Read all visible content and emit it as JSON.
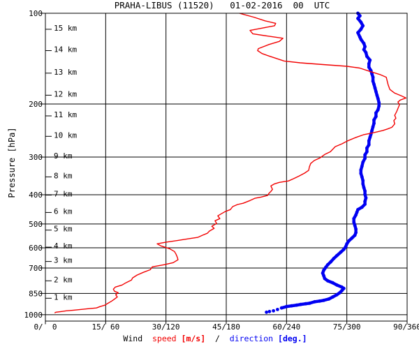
{
  "title": "PRAHA-LIBUS (11520)   01-02-2016  00  UTC",
  "station": {
    "name": "PRAHA-LIBUS",
    "id": "11520",
    "datetime": "01-02-2016 00 UTC"
  },
  "colors": {
    "speed": "#f20000",
    "direction": "#0000f2",
    "axis": "#000000",
    "background": "#ffffff"
  },
  "y_axis": {
    "label": "Pressure [hPa]",
    "ticks": [
      100,
      200,
      300,
      400,
      500,
      600,
      700,
      850,
      1000
    ],
    "scale": "log",
    "range": [
      100,
      1050
    ]
  },
  "height_axis": {
    "unit": "km",
    "ticks": [
      {
        "label": "15 km",
        "pressure": 113
      },
      {
        "label": "14 km",
        "pressure": 133
      },
      {
        "label": "13 km",
        "pressure": 158
      },
      {
        "label": "12 km",
        "pressure": 187
      },
      {
        "label": "11 km",
        "pressure": 219
      },
      {
        "label": "10 km",
        "pressure": 256
      },
      {
        "label": "9 km",
        "pressure": 300
      },
      {
        "label": "8 km",
        "pressure": 349
      },
      {
        "label": "7 km",
        "pressure": 401
      },
      {
        "label": "6 km",
        "pressure": 458
      },
      {
        "label": "5 km",
        "pressure": 524
      },
      {
        "label": "4 km",
        "pressure": 597
      },
      {
        "label": "3 km",
        "pressure": 666
      },
      {
        "label": "2 km",
        "pressure": 772
      },
      {
        "label": "1 km",
        "pressure": 882
      }
    ]
  },
  "x_axis": {
    "tick_labels": [
      "0/  0",
      "15/ 60",
      "30/120",
      "45/180",
      "60/240",
      "75/300",
      "90/360"
    ],
    "speed_ticks": [
      0,
      15,
      30,
      45,
      60,
      75,
      90
    ],
    "speed_range": [
      0,
      90
    ],
    "direction_range": [
      0,
      360
    ]
  },
  "legend": {
    "parts": [
      {
        "text": "Wind  ",
        "color": "#000000",
        "bold": false
      },
      {
        "text": "speed ",
        "color": "#f20000",
        "bold": false
      },
      {
        "text": "[m/s]",
        "color": "#f20000",
        "bold": true
      },
      {
        "text": "  /  ",
        "color": "#000000",
        "bold": false
      },
      {
        "text": "direction ",
        "color": "#0000f2",
        "bold": false
      },
      {
        "text": "[deg.]",
        "color": "#0000f2",
        "bold": true
      }
    ]
  },
  "chart_data": {
    "type": "line",
    "title": "PRAHA-LIBUS (11520) 01-02-2016 00 UTC",
    "xlabel": "Wind speed [m/s] / direction [deg.]",
    "ylabel": "Pressure [hPa]",
    "y_scale": "log",
    "ylim": [
      1050,
      100
    ],
    "grid": true,
    "series": [
      {
        "name": "wind speed",
        "unit": "m/s",
        "color": "#f20000",
        "x_range": [
          0,
          90
        ],
        "points": [
          [
            48.3,
            100
          ],
          [
            49.5,
            101
          ],
          [
            51.8,
            103
          ],
          [
            54.7,
            106
          ],
          [
            57.3,
            108
          ],
          [
            57.0,
            110
          ],
          [
            53.9,
            112
          ],
          [
            50.9,
            114
          ],
          [
            51.6,
            117
          ],
          [
            55.2,
            119
          ],
          [
            59.1,
            121
          ],
          [
            58.2,
            124
          ],
          [
            55.6,
            127
          ],
          [
            53.0,
            131
          ],
          [
            52.8,
            133
          ],
          [
            53.9,
            136
          ],
          [
            55.2,
            138
          ],
          [
            57.3,
            141
          ],
          [
            59.4,
            144
          ],
          [
            63.4,
            146
          ],
          [
            69.1,
            148
          ],
          [
            75.1,
            150
          ],
          [
            78.2,
            152
          ],
          [
            80.8,
            156
          ],
          [
            83.4,
            160
          ],
          [
            84.8,
            163
          ],
          [
            85.1,
            169
          ],
          [
            85.3,
            173
          ],
          [
            85.7,
            179
          ],
          [
            86.9,
            184
          ],
          [
            88.6,
            188
          ],
          [
            89.7,
            191
          ],
          [
            88.3,
            194
          ],
          [
            87.7,
            197
          ],
          [
            88.1,
            201
          ],
          [
            87.7,
            207
          ],
          [
            87.4,
            212
          ],
          [
            86.9,
            218
          ],
          [
            87.2,
            223
          ],
          [
            86.7,
            227
          ],
          [
            86.9,
            233
          ],
          [
            86.2,
            239
          ],
          [
            85.1,
            242
          ],
          [
            83.9,
            245
          ],
          [
            81.7,
            249
          ],
          [
            79.1,
            253
          ],
          [
            77.3,
            258
          ],
          [
            75.2,
            265
          ],
          [
            73.8,
            271
          ],
          [
            72.1,
            277
          ],
          [
            70.9,
            288
          ],
          [
            69.5,
            294
          ],
          [
            68.3,
            302
          ],
          [
            66.9,
            308
          ],
          [
            66.0,
            315
          ],
          [
            65.7,
            323
          ],
          [
            65.5,
            332
          ],
          [
            64.5,
            339
          ],
          [
            63.1,
            347
          ],
          [
            61.7,
            354
          ],
          [
            60.5,
            360
          ],
          [
            58.2,
            364
          ],
          [
            57.0,
            368
          ],
          [
            56.1,
            374
          ],
          [
            56.5,
            384
          ],
          [
            56.1,
            390
          ],
          [
            55.6,
            396
          ],
          [
            55.3,
            402
          ],
          [
            53.7,
            407
          ],
          [
            52.1,
            411
          ],
          [
            50.9,
            418
          ],
          [
            49.2,
            427
          ],
          [
            47.8,
            431
          ],
          [
            46.6,
            438
          ],
          [
            46.0,
            448
          ],
          [
            44.7,
            455
          ],
          [
            42.9,
            470
          ],
          [
            43.4,
            480
          ],
          [
            42.2,
            488
          ],
          [
            42.6,
            498
          ],
          [
            41.4,
            509
          ],
          [
            42.0,
            517
          ],
          [
            40.8,
            528
          ],
          [
            40.3,
            537
          ],
          [
            39.1,
            545
          ],
          [
            37.9,
            554
          ],
          [
            35.6,
            560
          ],
          [
            33.4,
            566
          ],
          [
            29.9,
            575
          ],
          [
            27.8,
            582
          ],
          [
            28.7,
            591
          ],
          [
            30.9,
            604
          ],
          [
            32.1,
            617
          ],
          [
            32.5,
            630
          ],
          [
            32.8,
            644
          ],
          [
            33.0,
            657
          ],
          [
            31.8,
            672
          ],
          [
            29.5,
            683
          ],
          [
            26.6,
            694
          ],
          [
            26.1,
            709
          ],
          [
            24.3,
            724
          ],
          [
            22.8,
            739
          ],
          [
            21.7,
            755
          ],
          [
            21.4,
            768
          ],
          [
            20.0,
            784
          ],
          [
            19.1,
            797
          ],
          [
            17.4,
            810
          ],
          [
            16.9,
            823
          ],
          [
            17.2,
            836
          ],
          [
            18.1,
            845
          ],
          [
            17.5,
            859
          ],
          [
            17.9,
            873
          ],
          [
            17.2,
            887
          ],
          [
            16.5,
            901
          ],
          [
            15.6,
            916
          ],
          [
            14.8,
            930
          ],
          [
            13.6,
            940
          ],
          [
            12.7,
            950
          ],
          [
            10.8,
            955
          ],
          [
            8.7,
            961
          ],
          [
            7.0,
            966
          ],
          [
            5.2,
            971
          ],
          [
            4.0,
            976
          ],
          [
            2.6,
            981
          ],
          [
            2.3,
            987
          ]
        ]
      },
      {
        "name": "wind direction",
        "unit": "deg",
        "color": "#0000f2",
        "x_range": [
          0,
          360
        ],
        "points": [
          [
            311,
            100
          ],
          [
            313,
            102
          ],
          [
            311,
            104
          ],
          [
            314,
            107
          ],
          [
            316,
            110
          ],
          [
            314,
            113
          ],
          [
            311,
            116
          ],
          [
            313,
            120
          ],
          [
            314,
            122
          ],
          [
            317,
            126
          ],
          [
            318,
            129
          ],
          [
            317,
            132
          ],
          [
            319,
            135
          ],
          [
            320,
            139
          ],
          [
            323,
            143
          ],
          [
            322,
            147
          ],
          [
            322,
            151
          ],
          [
            324,
            155
          ],
          [
            325,
            159
          ],
          [
            326,
            163
          ],
          [
            326,
            168
          ],
          [
            327,
            172
          ],
          [
            328,
            177
          ],
          [
            329,
            182
          ],
          [
            330,
            187
          ],
          [
            331,
            192
          ],
          [
            332,
            198
          ],
          [
            332,
            203
          ],
          [
            331,
            209
          ],
          [
            329,
            214
          ],
          [
            329,
            220
          ],
          [
            327,
            226
          ],
          [
            327,
            232
          ],
          [
            326,
            238
          ],
          [
            325,
            245
          ],
          [
            324,
            252
          ],
          [
            323,
            258
          ],
          [
            322,
            265
          ],
          [
            322,
            273
          ],
          [
            320,
            280
          ],
          [
            320,
            288
          ],
          [
            318,
            295
          ],
          [
            318,
            303
          ],
          [
            316,
            312
          ],
          [
            315,
            322
          ],
          [
            314,
            331
          ],
          [
            314,
            340
          ],
          [
            315,
            349
          ],
          [
            316,
            359
          ],
          [
            316,
            368
          ],
          [
            317,
            379
          ],
          [
            318,
            389
          ],
          [
            318,
            399
          ],
          [
            319,
            410
          ],
          [
            318,
            421
          ],
          [
            318,
            430
          ],
          [
            315,
            440
          ],
          [
            311,
            448
          ],
          [
            310,
            457
          ],
          [
            309,
            467
          ],
          [
            307,
            480
          ],
          [
            307,
            493
          ],
          [
            308,
            506
          ],
          [
            309,
            520
          ],
          [
            309,
            534
          ],
          [
            308,
            545
          ],
          [
            305,
            557
          ],
          [
            302,
            569
          ],
          [
            300,
            582
          ],
          [
            299,
            594
          ],
          [
            297,
            607
          ],
          [
            294,
            620
          ],
          [
            290,
            637
          ],
          [
            287,
            651
          ],
          [
            284,
            668
          ],
          [
            281,
            683
          ],
          [
            279,
            697
          ],
          [
            277,
            712
          ],
          [
            276,
            728
          ],
          [
            277,
            743
          ],
          [
            278,
            759
          ],
          [
            281,
            772
          ],
          [
            286,
            784
          ],
          [
            290,
            797
          ],
          [
            295,
            810
          ],
          [
            297,
            818
          ],
          [
            295,
            832
          ],
          [
            293,
            845
          ],
          [
            290,
            859
          ],
          [
            286,
            873
          ],
          [
            282,
            887
          ],
          [
            277,
            896
          ],
          [
            273,
            901
          ],
          [
            268,
            906
          ],
          [
            263,
            916
          ],
          [
            259,
            920
          ],
          [
            254,
            925
          ],
          [
            250,
            930
          ],
          [
            245,
            935
          ],
          [
            240,
            940
          ],
          [
            235,
            950
          ],
          [
            231,
            961
          ],
          [
            227,
            971
          ],
          [
            223,
            976
          ],
          [
            220,
            981
          ]
        ]
      }
    ]
  }
}
